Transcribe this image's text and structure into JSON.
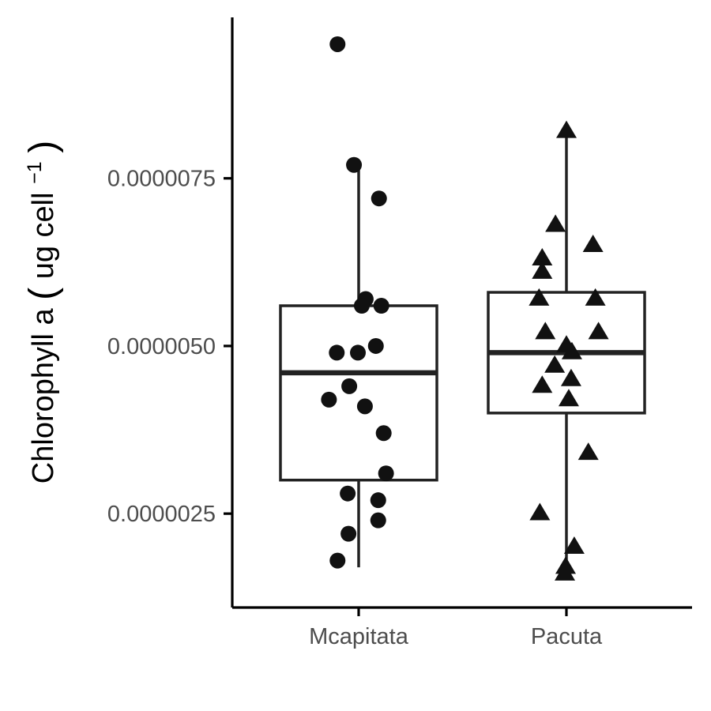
{
  "chart_data": {
    "type": "box",
    "ylabel": {
      "main": "Chlorophyll a",
      "unit": "ug cell",
      "superscript": "−1"
    },
    "categories": [
      "Mcapitata",
      "Pacuta"
    ],
    "y_ticks": [
      {
        "value": 2.5e-06,
        "label": "0.0000025"
      },
      {
        "value": 5e-06,
        "label": "0.0000050"
      },
      {
        "value": 7.5e-06,
        "label": "0.0000075"
      }
    ],
    "ylim": [
      1.1e-06,
      9.9e-06
    ],
    "grid": false,
    "legend": "none",
    "colors": {
      "box": "#222222",
      "points": "#111111",
      "axis": "#000000",
      "tick_text": "#4d4d4d"
    },
    "series": [
      {
        "category": "Mcapitata",
        "marker": "circle",
        "box": {
          "min": 1.7e-06,
          "q1": 3e-06,
          "median": 4.6e-06,
          "q3": 5.6e-06,
          "max": 7.7e-06
        },
        "points": [
          9.5e-06,
          7.7e-06,
          7.2e-06,
          5.7e-06,
          5.6e-06,
          5.6e-06,
          5e-06,
          4.9e-06,
          4.9e-06,
          4.4e-06,
          4.2e-06,
          4.1e-06,
          3.7e-06,
          3.1e-06,
          2.8e-06,
          2.7e-06,
          2.4e-06,
          2.2e-06,
          1.8e-06
        ]
      },
      {
        "category": "Pacuta",
        "marker": "triangle",
        "box": {
          "min": 1.6e-06,
          "q1": 4e-06,
          "median": 4.9e-06,
          "q3": 5.8e-06,
          "max": 8.2e-06
        },
        "points": [
          8.2e-06,
          6.8e-06,
          6.5e-06,
          6.3e-06,
          6.1e-06,
          5.7e-06,
          5.7e-06,
          5.2e-06,
          5.2e-06,
          5e-06,
          4.9e-06,
          4.7e-06,
          4.5e-06,
          4.4e-06,
          4.2e-06,
          3.4e-06,
          2.5e-06,
          2e-06,
          1.7e-06,
          1.6e-06
        ]
      }
    ]
  }
}
